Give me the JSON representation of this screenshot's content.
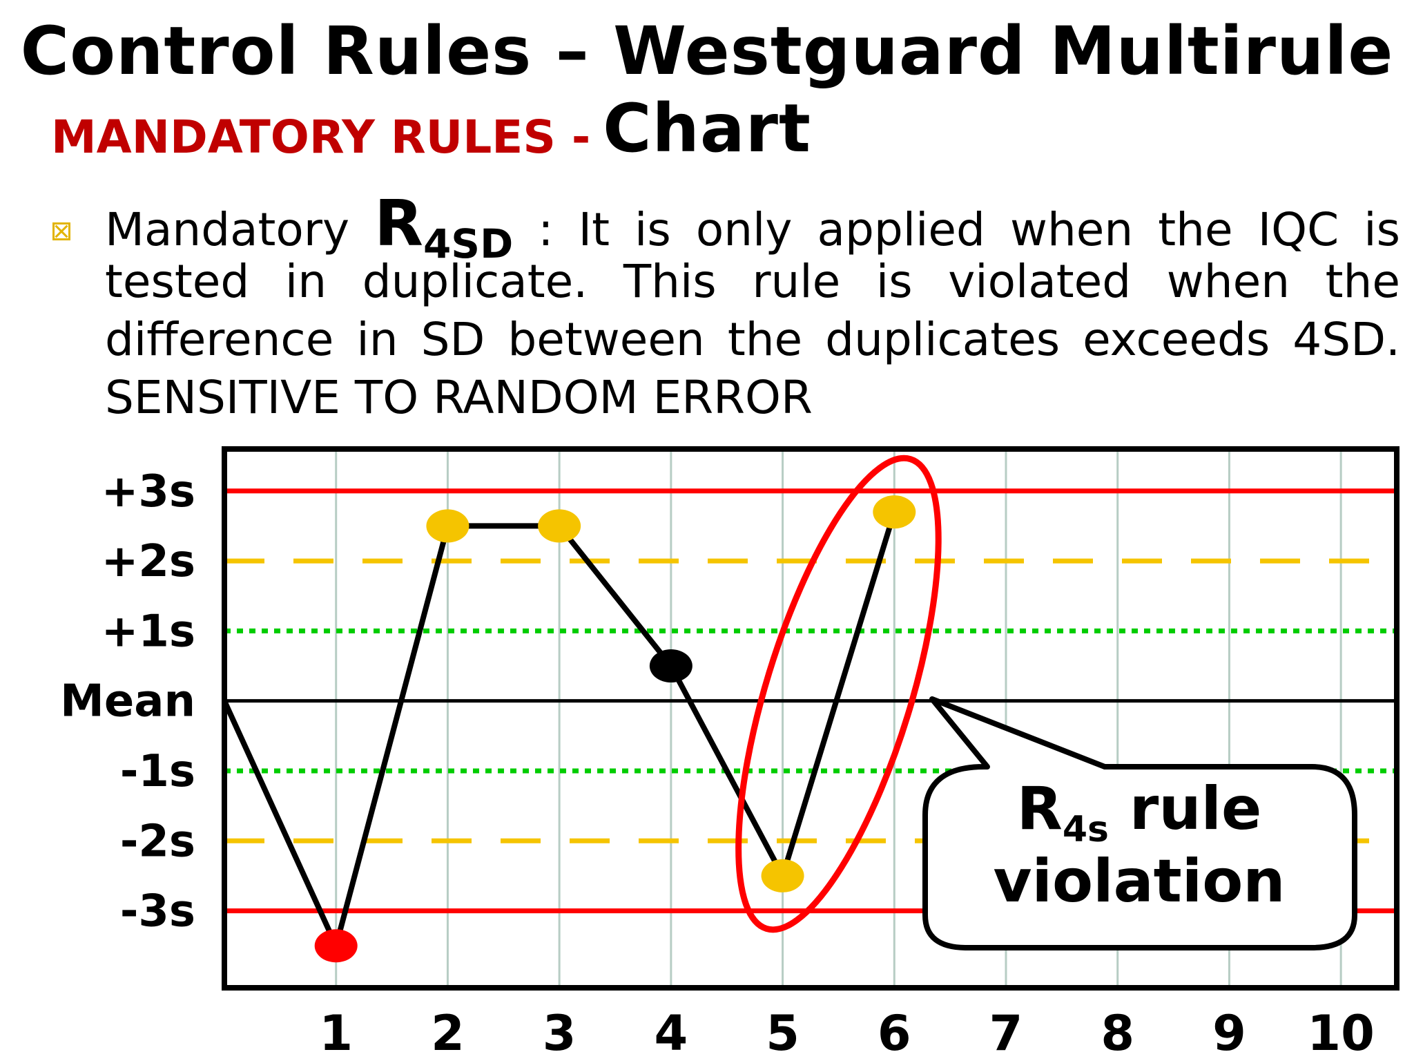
{
  "title": "Control Rules – Westguard Multirule Chart",
  "section_heading": "MANDATORY RULES -",
  "bullet": {
    "icon": "checkbox-x-icon",
    "line1_prefix": "Mandatory",
    "rule_main": "R",
    "rule_sub": "4SD",
    "line1_suffix": ":  It is only applied when the IQC is",
    "line2": "tested in duplicate. This rule is violated when the",
    "line3": "difference in SD between the duplicates exceeds 4SD.",
    "line4": "SENSITIVE TO RANDOM ERROR"
  },
  "chart_data": {
    "type": "line",
    "y_tick_labels": [
      "+3s",
      "+2s",
      "+1s",
      "Mean",
      "-1s",
      "-2s",
      "-3s"
    ],
    "y_tick_values": [
      3,
      2,
      1,
      0,
      -1,
      -2,
      -3
    ],
    "x_tick_labels": [
      "1",
      "2",
      "3",
      "4",
      "5",
      "6",
      "7",
      "8",
      "9",
      "10"
    ],
    "xlim": [
      0,
      10.5
    ],
    "ylim": [
      -4.1,
      3.6
    ],
    "series": [
      {
        "x": [
          0,
          1,
          2,
          3,
          4,
          5,
          6
        ],
        "y": [
          0,
          -3.5,
          2.5,
          2.5,
          0.5,
          -2.5,
          2.7
        ],
        "point_colors": [
          null,
          "#ff0000",
          "#f5c400",
          "#f5c400",
          "#000000",
          "#f5c400",
          "#f5c400"
        ]
      }
    ],
    "control_lines": [
      {
        "y": 3,
        "style": "solid",
        "color": "#ff0000"
      },
      {
        "y": 2,
        "style": "dashed",
        "color": "#f5c400"
      },
      {
        "y": 1,
        "style": "dotted",
        "color": "#00cc00"
      },
      {
        "y": 0,
        "style": "solid",
        "color": "#000000"
      },
      {
        "y": -1,
        "style": "dotted",
        "color": "#00cc00"
      },
      {
        "y": -2,
        "style": "dashed",
        "color": "#f5c400"
      },
      {
        "y": -3,
        "style": "solid",
        "color": "#ff0000"
      }
    ],
    "highlight": {
      "points": [
        5,
        6
      ],
      "color": "#ff0000"
    },
    "annotation": {
      "main": "R",
      "sub": "4s",
      "suffix": " rule",
      "line2": "violation"
    },
    "grid": true
  }
}
